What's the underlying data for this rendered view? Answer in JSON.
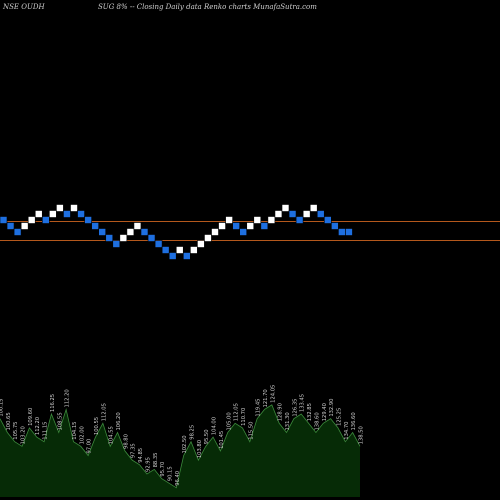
{
  "header": {
    "symbol": "NSE OUDH",
    "caption": "SUG 8% -- Closing Daily data Renko charts MunafaSutra.com"
  },
  "colors": {
    "background": "#000000",
    "up_brick": "#ffffff",
    "down_brick": "#1e6fe0",
    "brick_border": "#000000",
    "level_line": "#b4581c",
    "volume_fill": "#062b06",
    "volume_line": "#3c8a3c",
    "volume_label": "#d0d0d0"
  },
  "chart_data": {
    "type": "renko",
    "title": "SUG 8% -- Closing Daily data Renko charts MunafaSutra.com",
    "bricks": [
      {
        "level": 2,
        "dir": "down"
      },
      {
        "level": 1,
        "dir": "down"
      },
      {
        "level": 0,
        "dir": "down"
      },
      {
        "level": 1,
        "dir": "up"
      },
      {
        "level": 2,
        "dir": "up"
      },
      {
        "level": 3,
        "dir": "up"
      },
      {
        "level": 2,
        "dir": "down"
      },
      {
        "level": 3,
        "dir": "up"
      },
      {
        "level": 4,
        "dir": "up"
      },
      {
        "level": 3,
        "dir": "down"
      },
      {
        "level": 4,
        "dir": "up"
      },
      {
        "level": 3,
        "dir": "down"
      },
      {
        "level": 2,
        "dir": "down"
      },
      {
        "level": 1,
        "dir": "down"
      },
      {
        "level": 0,
        "dir": "down"
      },
      {
        "level": -1,
        "dir": "down"
      },
      {
        "level": -2,
        "dir": "down"
      },
      {
        "level": -1,
        "dir": "up"
      },
      {
        "level": 0,
        "dir": "up"
      },
      {
        "level": 1,
        "dir": "up"
      },
      {
        "level": 0,
        "dir": "down"
      },
      {
        "level": -1,
        "dir": "down"
      },
      {
        "level": -2,
        "dir": "down"
      },
      {
        "level": -3,
        "dir": "down"
      },
      {
        "level": -4,
        "dir": "down"
      },
      {
        "level": -3,
        "dir": "up"
      },
      {
        "level": -4,
        "dir": "down"
      },
      {
        "level": -3,
        "dir": "up"
      },
      {
        "level": -2,
        "dir": "up"
      },
      {
        "level": -1,
        "dir": "up"
      },
      {
        "level": 0,
        "dir": "up"
      },
      {
        "level": 1,
        "dir": "up"
      },
      {
        "level": 2,
        "dir": "up"
      },
      {
        "level": 1,
        "dir": "down"
      },
      {
        "level": 0,
        "dir": "down"
      },
      {
        "level": 1,
        "dir": "up"
      },
      {
        "level": 2,
        "dir": "up"
      },
      {
        "level": 1,
        "dir": "down"
      },
      {
        "level": 2,
        "dir": "up"
      },
      {
        "level": 3,
        "dir": "up"
      },
      {
        "level": 4,
        "dir": "up"
      },
      {
        "level": 3,
        "dir": "down"
      },
      {
        "level": 2,
        "dir": "down"
      },
      {
        "level": 3,
        "dir": "up"
      },
      {
        "level": 4,
        "dir": "up"
      },
      {
        "level": 3,
        "dir": "down"
      },
      {
        "level": 2,
        "dir": "down"
      },
      {
        "level": 1,
        "dir": "down"
      },
      {
        "level": 0,
        "dir": "down"
      },
      {
        "level": 0,
        "dir": "down"
      }
    ],
    "volume_labels": [
      "100.15",
      "100.65",
      "105.75",
      "103.20",
      "109.60",
      "112.20",
      "111.15",
      "116.25",
      "108.55",
      "112.20",
      "104.15",
      "102.00",
      "97.00",
      "100.55",
      "112.05",
      "104.55",
      "106.20",
      "98.80",
      "97.35",
      "94.85",
      "92.95",
      "88.35",
      "95.70",
      "90.15",
      "96.40",
      "102.50",
      "98.25",
      "103.80",
      "95.50",
      "104.00",
      "101.45",
      "105.00",
      "112.05",
      "110.70",
      "115.50",
      "119.45",
      "121.70",
      "124.05",
      "128.90",
      "131.30",
      "126.35",
      "133.45",
      "132.85",
      "138.60",
      "129.40",
      "132.90",
      "125.25",
      "134.70",
      "136.60",
      "138.50"
    ],
    "volume_values": [
      0.85,
      0.7,
      0.6,
      0.55,
      0.75,
      0.65,
      0.6,
      0.9,
      0.7,
      0.95,
      0.6,
      0.55,
      0.45,
      0.65,
      0.8,
      0.55,
      0.7,
      0.5,
      0.4,
      0.35,
      0.25,
      0.3,
      0.2,
      0.15,
      0.1,
      0.45,
      0.6,
      0.4,
      0.55,
      0.65,
      0.5,
      0.7,
      0.8,
      0.75,
      0.6,
      0.85,
      0.95,
      1.0,
      0.8,
      0.7,
      0.85,
      0.9,
      0.8,
      0.7,
      0.8,
      0.85,
      0.75,
      0.6,
      0.7,
      0.55
    ],
    "reference_levels": [
      1,
      -1
    ]
  }
}
